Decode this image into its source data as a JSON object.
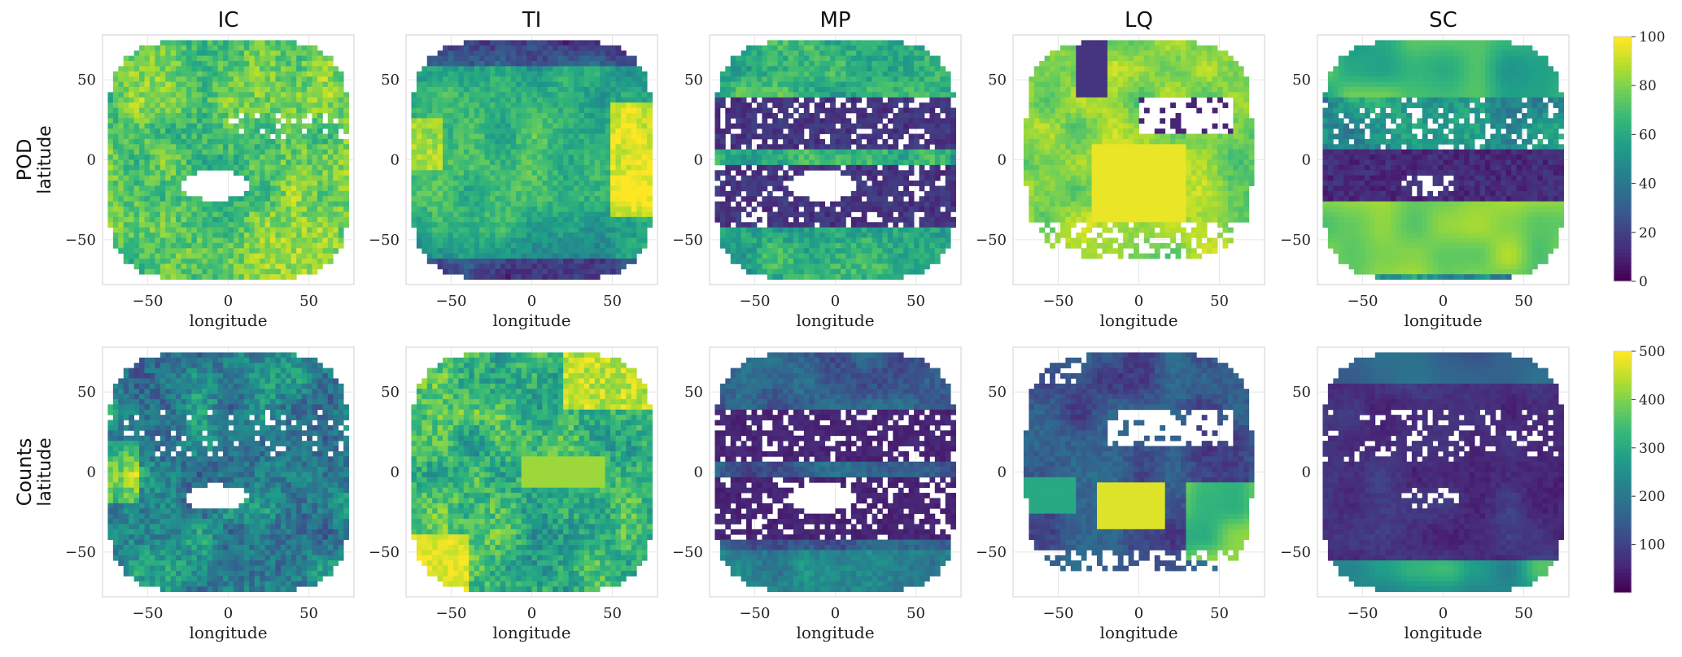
{
  "chart_data": {
    "type": "heatmap",
    "layout": {
      "rows": 2,
      "cols": 5
    },
    "columns": [
      "IC",
      "TI",
      "MP",
      "LQ",
      "SC"
    ],
    "rows": [
      {
        "row_label": "POD",
        "colorbar": {
          "min": 0,
          "max": 100,
          "ticks": [
            "0",
            "20",
            "40",
            "60",
            "80",
            "100"
          ]
        }
      },
      {
        "row_label": "Counts",
        "colorbar": {
          "min": 0,
          "max": 500,
          "ticks": [
            "100",
            "200",
            "300",
            "400",
            "500"
          ]
        }
      }
    ],
    "xlabel": "longitude",
    "ylabel": "latitude",
    "x_ticks": [
      "−50",
      "0",
      "50"
    ],
    "y_ticks": [
      "50",
      "0",
      "−50"
    ],
    "xlim": [
      -78,
      78
    ],
    "ylim": [
      -78,
      78
    ],
    "colormap": "viridis",
    "colormap_stops": [
      "#440154",
      "#482878",
      "#3e4989",
      "#31688e",
      "#26828e",
      "#1f9e89",
      "#35b779",
      "#6ece58",
      "#b5de2b",
      "#fde725"
    ],
    "grid": true
  }
}
